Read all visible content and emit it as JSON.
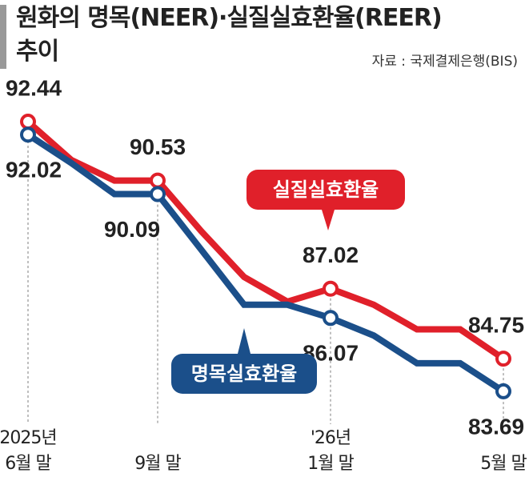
{
  "chart_data": {
    "type": "line",
    "title": "원화의 명목(NEER)·실질실효환율(REER)\n추이",
    "source": "자료 : 국제결제은행(BIS)",
    "categories": [
      "2025년\n6월 말",
      null,
      null,
      "9월 말",
      null,
      null,
      null,
      "'26년\n1월 말",
      null,
      null,
      null,
      "5월 말"
    ],
    "series": [
      {
        "name": "실질실효환율",
        "color": "#e0202a",
        "values": [
          92.44,
          91.2,
          90.53,
          90.53,
          88.9,
          87.4,
          86.6,
          87.02,
          86.5,
          85.7,
          85.7,
          84.75
        ],
        "value_labels": [
          "92.44",
          null,
          null,
          "90.53",
          null,
          null,
          null,
          "87.02",
          null,
          null,
          null,
          "84.75"
        ]
      },
      {
        "name": "명목실효환율",
        "color": "#1b4f8a",
        "values": [
          92.02,
          91.1,
          90.09,
          90.09,
          88.3,
          86.5,
          86.5,
          86.07,
          85.5,
          84.6,
          84.6,
          83.69
        ],
        "value_labels": [
          "92.02",
          null,
          null,
          "90.09",
          null,
          null,
          null,
          "86.07",
          null,
          null,
          null,
          "83.69"
        ]
      }
    ],
    "ylim": [
      82,
      94
    ],
    "grid": false
  }
}
